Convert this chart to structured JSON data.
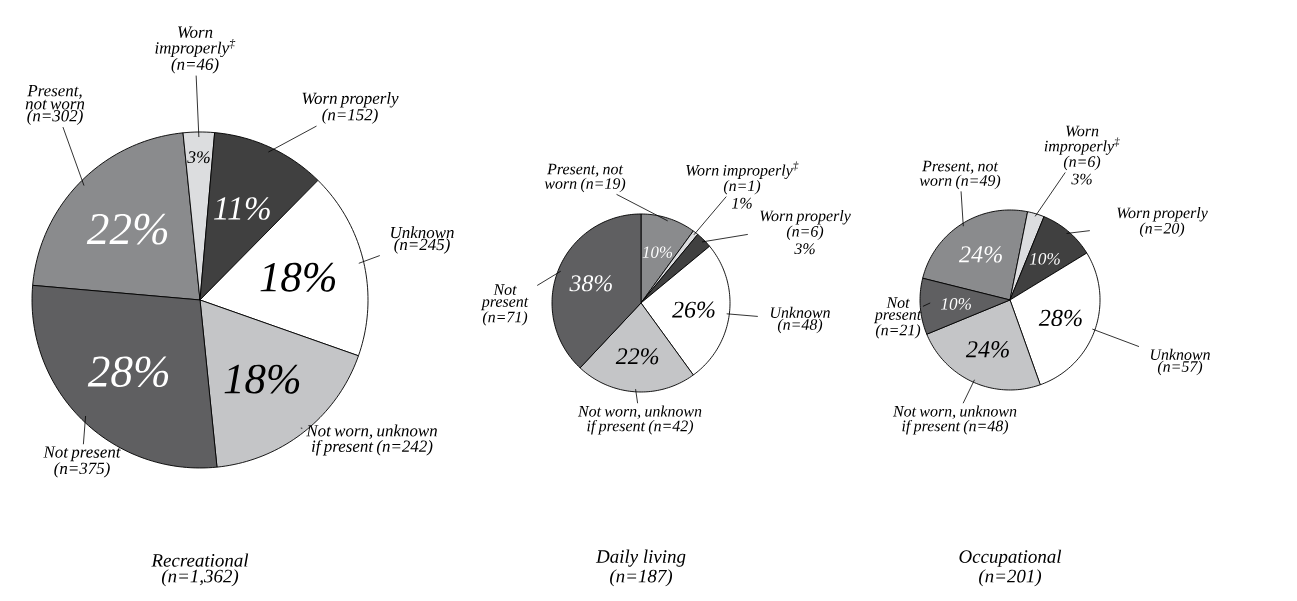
{
  "chart_data": [
    {
      "type": "pie",
      "title": "Recreational",
      "subtitle": "(n=1,362)",
      "categories": [
        "Present, not worn (n=302)",
        "Worn improperly$^{‡}$ (n=46)",
        "Worn properly (n=152)",
        "Unknown (n=245)",
        "Not worn, unknown if present (n=242)",
        "Not present (n=375)"
      ],
      "values": [
        22,
        3,
        11,
        18,
        18,
        28
      ],
      "value_labels": [
        "22%",
        "3%",
        "11%",
        "18%",
        "18%",
        "28%"
      ],
      "colors": [
        "#8a8b8d",
        "#dcdddf",
        "#404040",
        "#ffffff",
        "#c4c5c7",
        "#5f5f61"
      ]
    },
    {
      "type": "pie",
      "title": "Daily living",
      "subtitle": "(n=187)",
      "categories": [
        "Present, not worn (n=19)",
        "Worn improperly$^{‡}$ (n=1)",
        "Worn properly (n=6)",
        "Unknown (n=48)",
        "Not worn, unknown if present (n=42)",
        "Not present (n=71)"
      ],
      "values": [
        10,
        1,
        3,
        26,
        22,
        38
      ],
      "value_labels": [
        "10%",
        "1%",
        "3%",
        "26%",
        "22%",
        "38%"
      ],
      "colors": [
        "#8a8b8d",
        "#dcdddf",
        "#404040",
        "#ffffff",
        "#c4c5c7",
        "#5f5f61"
      ]
    },
    {
      "type": "pie",
      "title": "Occupational",
      "subtitle": "(n=201)",
      "categories": [
        "Present, not worn (n=49)",
        "Worn improperly$^{‡}$ (n=6)",
        "Worn properly (n=20)",
        "Unknown (n=57)",
        "Not worn, unknown if present (n=48)",
        "Not present (n=21)"
      ],
      "values": [
        24,
        3,
        10,
        28,
        24,
        10
      ],
      "value_labels": [
        "24%",
        "3%",
        "10%",
        "28%",
        "24%",
        "10%"
      ],
      "colors": [
        "#8a8b8d",
        "#dcdddf",
        "#404040",
        "#ffffff",
        "#c4c5c7",
        "#5f5f61"
      ]
    }
  ]
}
